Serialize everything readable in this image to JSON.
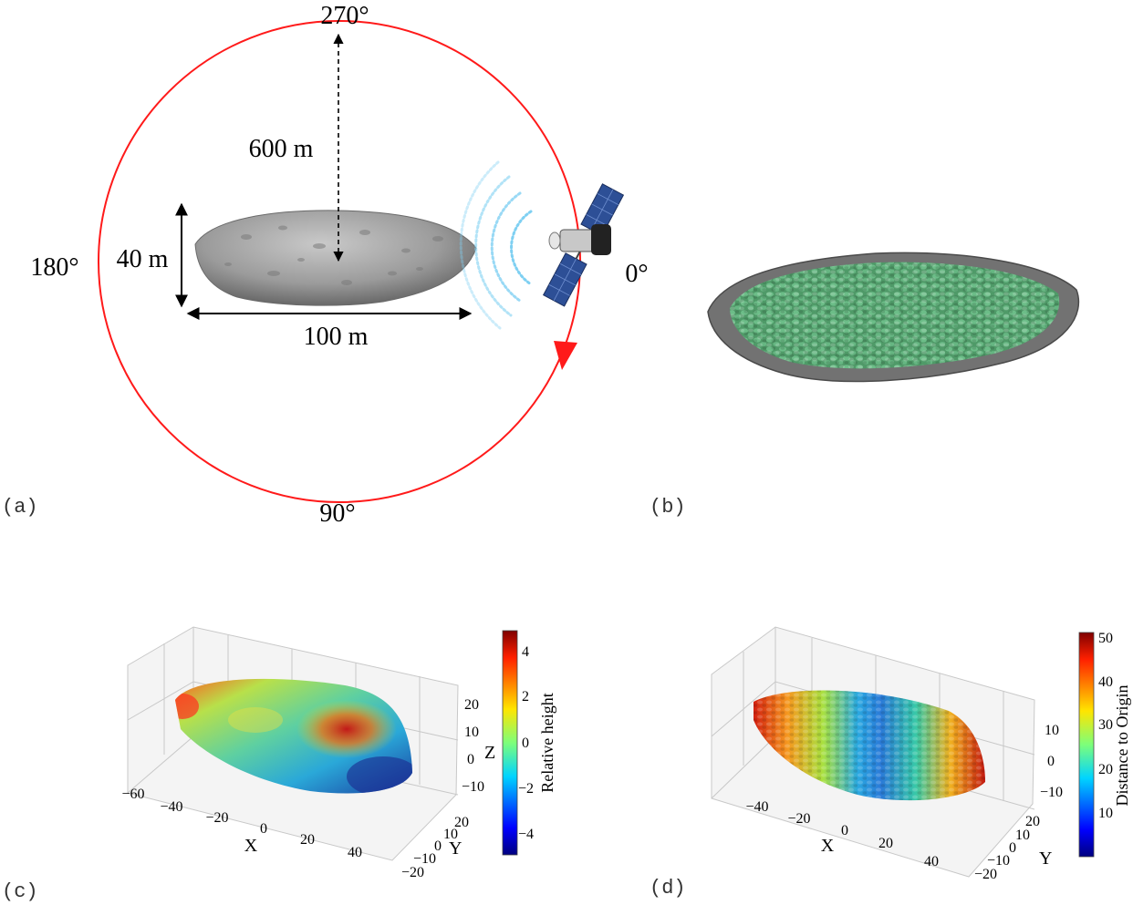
{
  "panels": {
    "a": {
      "label": "(a)",
      "angles": {
        "a0": "0°",
        "a90": "90°",
        "a180": "180°",
        "a270": "270°"
      },
      "dims": {
        "radius": "600 m",
        "height": "40 m",
        "width": "100 m"
      },
      "colors": {
        "orbit": "#ff1a1a",
        "asteroid": "#9a9a9a"
      }
    },
    "b": {
      "label": "(b)",
      "colors": {
        "rim": "#6f6f6f",
        "boulder": "#5aa874"
      }
    },
    "c": {
      "label": "(c)",
      "x_axis_label": "X",
      "y_axis_label": "Y",
      "z_axis_label": "Z",
      "x_ticks": [
        "−60",
        "−40",
        "−20",
        "0",
        "20",
        "40"
      ],
      "y_ticks": [
        "20",
        "10",
        "0",
        "−10",
        "−20"
      ],
      "z_ticks": [
        "20",
        "10",
        "0",
        "−10"
      ],
      "colorbar": {
        "label": "Relative height",
        "ticks": [
          "4",
          "2",
          "0",
          "−2",
          "−4"
        ],
        "min": -5,
        "max": 5
      }
    },
    "d": {
      "label": "(d)",
      "x_axis_label": "X",
      "y_axis_label": "Y",
      "x_ticks": [
        "−40",
        "−20",
        "0",
        "20",
        "40"
      ],
      "y_ticks": [
        "20",
        "10",
        "0",
        "−10",
        "−20"
      ],
      "z_ticks": [
        "10",
        "0",
        "−10"
      ],
      "colorbar": {
        "label": "Distance to Origin",
        "ticks": [
          "50",
          "40",
          "30",
          "20",
          "10"
        ],
        "min": 0,
        "max": 51
      }
    }
  }
}
